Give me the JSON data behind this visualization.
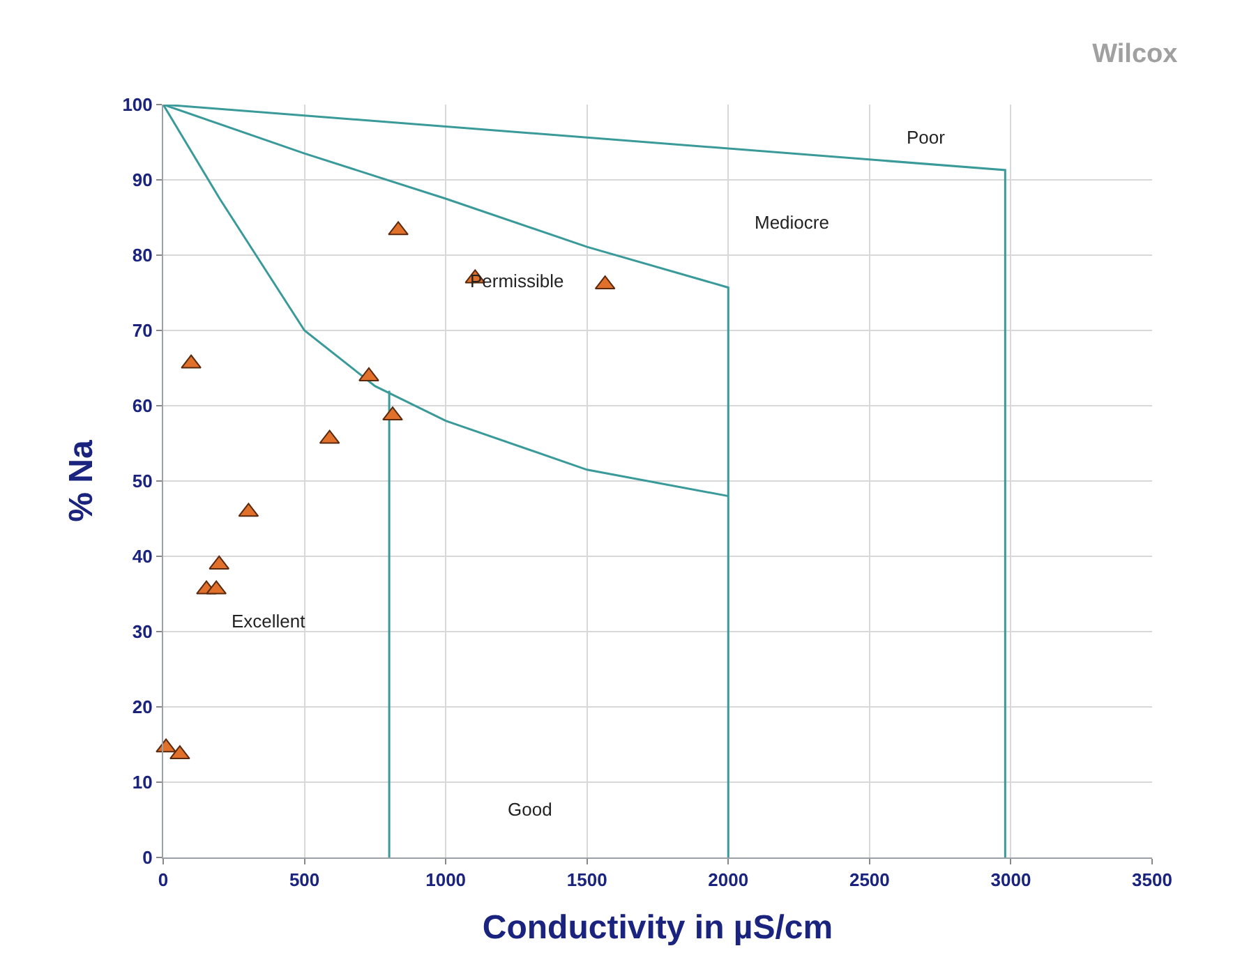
{
  "chart_data": {
    "type": "scatter",
    "title": "Wilcox",
    "xlabel": "Conductivity in µS/cm",
    "ylabel": "% Na",
    "xlim": [
      0,
      3500
    ],
    "xticks": [
      0,
      500,
      1000,
      1500,
      2000,
      2500,
      3000,
      3500
    ],
    "ylim": [
      0,
      100
    ],
    "yticks": [
      0,
      10,
      20,
      30,
      40,
      50,
      60,
      70,
      80,
      90,
      100
    ],
    "grid": true,
    "marker": "triangle",
    "series": [
      {
        "color": "#e0702a",
        "x": [
          832,
          1104,
          1564,
          99,
          728,
          812,
          589,
          302,
          198,
          153,
          188,
          10,
          59
        ],
        "values": [
          83.3,
          76.9,
          76.1,
          65.6,
          63.9,
          58.7,
          55.6,
          45.9,
          38.9,
          35.6,
          35.6,
          14.6,
          13.7
        ]
      },
      {
        "type": "line",
        "color": "#3a9a9a",
        "marker": "none",
        "x": [
          0,
          2980,
          2980
        ],
        "values": [
          100,
          91.3,
          0
        ]
      },
      {
        "type": "line",
        "color": "#3a9a9a",
        "marker": "none",
        "x": [
          0,
          500,
          1000,
          1500,
          2000,
          2000
        ],
        "values": [
          100,
          93.5,
          87.5,
          81.1,
          75.7,
          0
        ]
      },
      {
        "type": "line",
        "color": "#3a9a9a",
        "marker": "none",
        "x": [
          0,
          200,
          500,
          750,
          1000,
          1500,
          2000
        ],
        "values": [
          100,
          87.5,
          70,
          62.6,
          58,
          51.5,
          48
        ]
      },
      {
        "type": "line",
        "color": "#3a9a9a",
        "marker": "none",
        "x": [
          800,
          800
        ],
        "values": [
          0,
          62
        ]
      }
    ],
    "annotations": [
      "Poor",
      "Mediocre",
      "Permissible",
      "Excellent",
      "Good"
    ]
  }
}
